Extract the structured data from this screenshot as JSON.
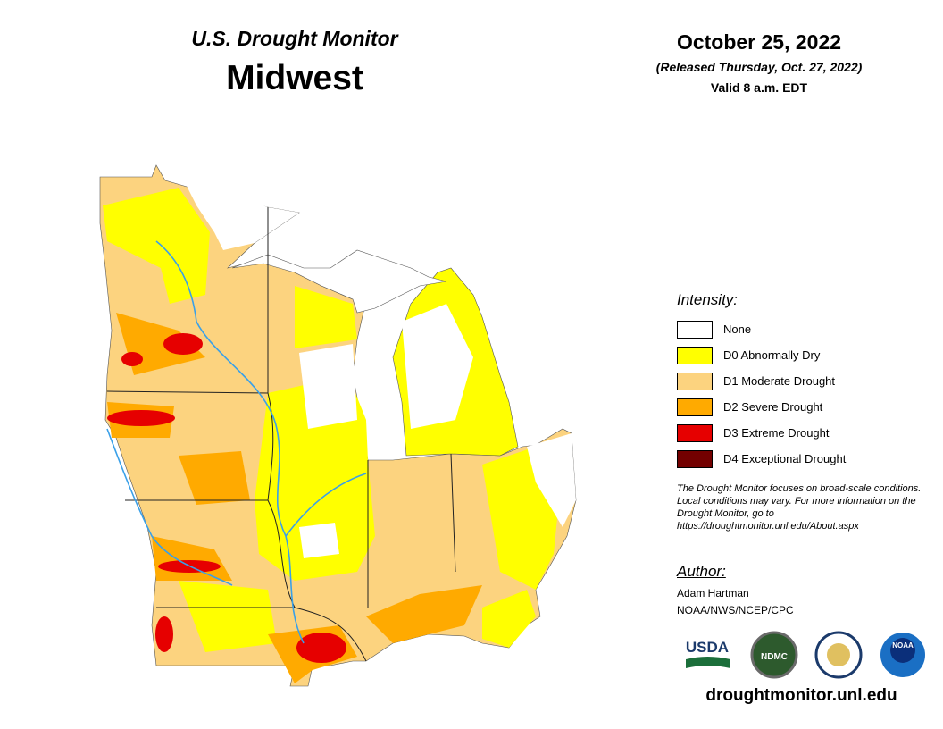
{
  "header": {
    "title": "U.S. Drought Monitor",
    "region": "Midwest",
    "date": "October 25, 2022",
    "released": "(Released Thursday, Oct. 27, 2022)",
    "valid": "Valid 8 a.m. EDT"
  },
  "legend": {
    "title": "Intensity:",
    "items": [
      {
        "label": "None",
        "color": "#ffffff"
      },
      {
        "label": "D0 Abnormally Dry",
        "color": "#ffff00"
      },
      {
        "label": "D1 Moderate Drought",
        "color": "#fcd37f"
      },
      {
        "label": "D2 Severe Drought",
        "color": "#ffaa00"
      },
      {
        "label": "D3 Extreme Drought",
        "color": "#e60000"
      },
      {
        "label": "D4 Exceptional Drought",
        "color": "#730000"
      }
    ]
  },
  "note": "The Drought Monitor focuses on broad-scale conditions. Local conditions may vary. For more information on the Drought Monitor, go to https://droughtmonitor.unl.edu/About.aspx",
  "author": {
    "heading": "Author:",
    "name": "Adam Hartman",
    "org": "NOAA/NWS/NCEP/CPC"
  },
  "logos": [
    "USDA",
    "NDMC",
    "NOAA"
  ],
  "url": "droughtmonitor.unl.edu"
}
